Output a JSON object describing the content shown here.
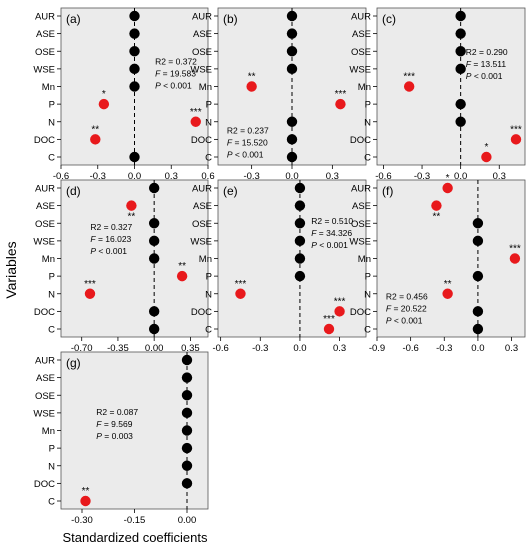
{
  "figure": {
    "ylabel": "Variables",
    "xlabel": "Standardized coefficients",
    "colors": {
      "significant": "#e8191c",
      "nonsignificant": "#000000",
      "panel_bg": "#ebebeb"
    }
  },
  "chart_data": [
    {
      "type": "scatter",
      "panel": "(a)",
      "categories": [
        "AUR",
        "ASE",
        "OSE",
        "WSE",
        "Mn",
        "P",
        "N",
        "DOC",
        "C"
      ],
      "values": [
        0.0,
        0.0,
        0.0,
        0.0,
        0.0,
        -0.25,
        0.5,
        -0.32,
        0.0
      ],
      "significance": [
        "",
        "",
        "",
        "",
        "",
        "*",
        "***",
        "**",
        ""
      ],
      "xlim": [
        -0.6,
        0.6
      ],
      "xticks": [
        "-0.6",
        "-0.3",
        "0.0",
        "0.3",
        "0.6"
      ],
      "stats": {
        "r2": "R2 = 0.372",
        "f": "F = 19.583",
        "p": "P < 0.001"
      }
    },
    {
      "type": "scatter",
      "panel": "(b)",
      "categories": [
        "AUR",
        "ASE",
        "OSE",
        "WSE",
        "Mn",
        "P",
        "N",
        "DOC",
        "C"
      ],
      "values": [
        0.0,
        0.0,
        0.0,
        0.0,
        -0.3,
        0.36,
        0.0,
        0.0,
        0.0
      ],
      "significance": [
        "",
        "",
        "",
        "",
        "**",
        "***",
        "",
        "",
        ""
      ],
      "xlim": [
        -0.55,
        0.55
      ],
      "xticks": [
        "-0.3",
        "0.0",
        "0.3"
      ],
      "stats": {
        "r2": "R2 = 0.237",
        "f": "F = 15.520",
        "p": "P < 0.001"
      }
    },
    {
      "type": "scatter",
      "panel": "(c)",
      "categories": [
        "AUR",
        "ASE",
        "OSE",
        "WSE",
        "Mn",
        "P",
        "N",
        "DOC",
        "C"
      ],
      "values": [
        0.0,
        0.0,
        0.0,
        0.0,
        -0.4,
        0.0,
        0.0,
        0.43,
        0.2
      ],
      "significance": [
        "",
        "",
        "",
        "",
        "***",
        "",
        "",
        "***",
        "*"
      ],
      "xlim": [
        -0.65,
        0.5
      ],
      "xticks": [
        "-0.6",
        "-0.3",
        "0.0",
        "0.3"
      ],
      "stats": {
        "r2": "R2 = 0.290",
        "f": "F = 13.511",
        "p": "P < 0.001"
      }
    },
    {
      "type": "scatter",
      "panel": "(d)",
      "categories": [
        "AUR",
        "ASE",
        "OSE",
        "WSE",
        "Mn",
        "P",
        "N",
        "DOC",
        "C"
      ],
      "values": [
        0.0,
        -0.22,
        0.0,
        0.0,
        0.0,
        0.27,
        -0.62,
        0.0,
        0.0
      ],
      "significance": [
        "",
        "**",
        "",
        "",
        "",
        "**",
        "***",
        "",
        ""
      ],
      "xlim": [
        -0.9,
        0.52
      ],
      "xticks": [
        "-0.70",
        "-0.35",
        "0.00",
        "0.35"
      ],
      "stats": {
        "r2": "R2 = 0.327",
        "f": "F = 16.023",
        "p": "P < 0.001"
      }
    },
    {
      "type": "scatter",
      "panel": "(e)",
      "categories": [
        "AUR",
        "ASE",
        "OSE",
        "WSE",
        "Mn",
        "P",
        "N",
        "DOC",
        "C"
      ],
      "values": [
        0.0,
        0.0,
        0.0,
        0.0,
        0.0,
        0.0,
        -0.45,
        0.3,
        0.22
      ],
      "significance": [
        "",
        "",
        "",
        "",
        "",
        "",
        "***",
        "***",
        "***"
      ],
      "xlim": [
        -0.62,
        0.5
      ],
      "xticks": [
        "-0.6",
        "-0.3",
        "0.0",
        "0.3"
      ],
      "stats": {
        "r2": "R2 = 0.510",
        "f": "F = 34.326",
        "p": "P < 0.001"
      }
    },
    {
      "type": "scatter",
      "panel": "(f)",
      "categories": [
        "AUR",
        "ASE",
        "OSE",
        "WSE",
        "Mn",
        "P",
        "N",
        "DOC",
        "C"
      ],
      "values": [
        -0.27,
        -0.37,
        0.0,
        0.0,
        0.33,
        0.0,
        -0.27,
        0.0,
        0.0
      ],
      "significance": [
        "*",
        "**",
        "",
        "",
        "***",
        "",
        "**",
        "",
        ""
      ],
      "xlim": [
        -0.9,
        0.42
      ],
      "xticks": [
        "-0.9",
        "-0.6",
        "-0.3",
        "0.0",
        "0.3"
      ],
      "stats": {
        "r2": "R2 = 0.456",
        "f": "F = 20.522",
        "p": "P < 0.001"
      }
    },
    {
      "type": "scatter",
      "panel": "(g)",
      "categories": [
        "AUR",
        "ASE",
        "OSE",
        "WSE",
        "Mn",
        "P",
        "N",
        "DOC",
        "C"
      ],
      "values": [
        0.0,
        0.0,
        0.0,
        0.0,
        0.0,
        0.0,
        0.0,
        0.0,
        -0.29
      ],
      "significance": [
        "",
        "",
        "",
        "",
        "",
        "",
        "",
        "",
        "**"
      ],
      "xlim": [
        -0.36,
        0.06
      ],
      "xticks": [
        "-0.30",
        "-0.15",
        "0.00"
      ],
      "stats": {
        "r2": "R2 = 0.087",
        "f": "F = 9.569",
        "p": "P = 0.003"
      }
    }
  ]
}
